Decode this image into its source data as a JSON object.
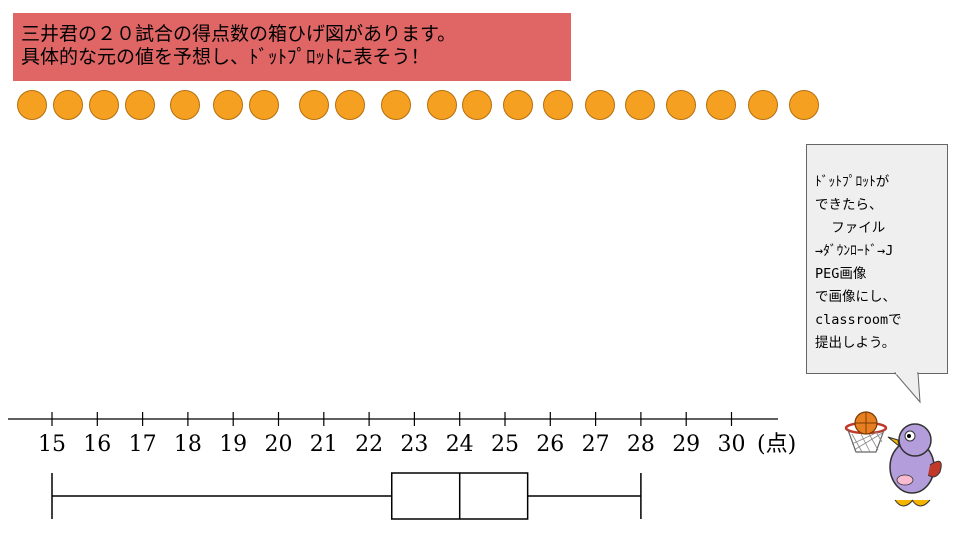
{
  "title": {
    "line1": "三井君の２０試合の得点数の箱ひげ図があります。",
    "line2": "具体的な元の値を予想し、ﾄﾞｯﾄﾌﾟﾛｯﾄに表そう！"
  },
  "dots_count": 20,
  "callout_lines": [
    "ﾄﾞｯﾄﾌﾟﾛｯﾄが",
    "できたら、",
    "  ファイル",
    "→ﾀﾞｳﾝﾛｰﾄﾞ→J",
    "PEG画像",
    "で画像にし、",
    "classroomで",
    "提出しよう。"
  ],
  "axis": {
    "ticks": [
      "15",
      "16",
      "17",
      "18",
      "19",
      "20",
      "21",
      "22",
      "23",
      "24",
      "25",
      "26",
      "27",
      "28",
      "29",
      "30"
    ],
    "unit": "(点)"
  },
  "chart_data": {
    "type": "boxplot",
    "min": 15,
    "q1": 22.5,
    "median": 24,
    "q3": 25.5,
    "max": 28,
    "xlim": [
      15,
      30
    ],
    "xlabel": "(点)"
  },
  "icons": [
    "basketball-icon",
    "bird-mascot-icon",
    "basketball-hoop-icon"
  ],
  "colors": {
    "title_bg": "#e06666",
    "dot_fill": "#f6a021",
    "callout_bg": "#efefef"
  }
}
